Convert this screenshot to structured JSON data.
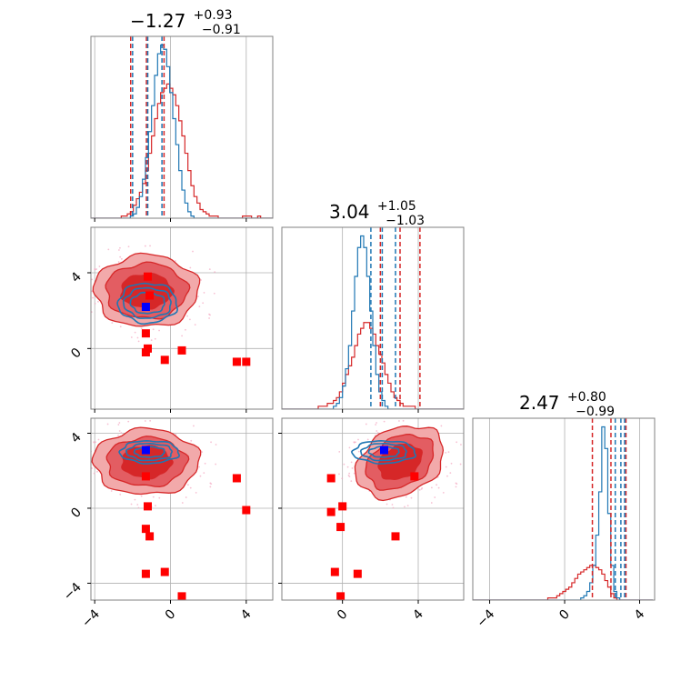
{
  "chart_data": {
    "type": "scatter",
    "subtype": "corner plot",
    "colors": {
      "red": "#d62728",
      "blue": "#1f77b4",
      "marker_red": "#ff0000",
      "marker_blue": "#0000ff",
      "grid": "#b0b0b0",
      "frame": "#808080"
    },
    "titles": [
      {
        "value": "−1.27",
        "sup": "+0.93",
        "sub": "−0.91"
      },
      {
        "value": "3.04",
        "sup": "+1.05",
        "sub": "−1.03"
      },
      {
        "value": "2.47",
        "sup": "+0.80",
        "sub": "−0.99"
      }
    ],
    "axes": {
      "p0": {
        "range": [
          -4.2,
          5.4
        ],
        "ticks": [
          -4,
          0,
          4
        ],
        "tick_labels": [
          "−4",
          "0",
          "4"
        ]
      },
      "p1": {
        "range": [
          -3.2,
          6.4
        ],
        "ticks": [
          0,
          4
        ],
        "tick_labels": [
          "0",
          "4"
        ]
      },
      "p2": {
        "range": [
          -4.9,
          4.8
        ],
        "ticks": [
          -4,
          0,
          4
        ],
        "tick_labels": [
          "−4",
          "0",
          "4"
        ]
      }
    },
    "grid": true,
    "quantiles": {
      "red": {
        "p0": [
          -2.1,
          -1.27,
          -0.34
        ],
        "p1": [
          2.0,
          3.04,
          4.09
        ],
        "p2": [
          1.48,
          2.47,
          3.27
        ]
      },
      "blue": {
        "p0": [
          -2.0,
          -1.2,
          -0.45
        ],
        "p1": [
          1.5,
          2.1,
          2.8
        ],
        "p2": [
          2.7,
          3.0,
          3.2
        ]
      }
    },
    "hist_bins": {
      "p0": {
        "start": -4.2,
        "step": 0.16
      },
      "p1": {
        "start": -3.2,
        "step": 0.16
      },
      "p2": {
        "start": -4.9,
        "step": 0.16
      }
    },
    "histograms": {
      "p0": {
        "red": [
          0,
          0,
          0,
          0,
          0,
          0,
          0,
          0,
          0,
          0,
          1,
          1,
          2,
          3,
          6,
          9,
          12,
          16,
          22,
          30,
          38,
          46,
          53,
          58,
          60,
          62,
          60,
          57,
          52,
          45,
          38,
          30,
          22,
          15,
          10,
          7,
          4,
          3,
          2,
          1,
          1,
          1,
          0,
          0,
          0,
          0,
          0,
          0,
          0,
          0,
          1,
          1,
          1,
          0,
          0,
          1,
          0,
          0,
          0,
          0
        ],
        "blue": [
          0,
          0,
          0,
          0,
          0,
          0,
          0,
          0,
          0,
          0,
          0,
          0,
          0,
          1,
          2,
          5,
          10,
          18,
          28,
          40,
          52,
          66,
          76,
          80,
          78,
          70,
          58,
          46,
          34,
          22,
          13,
          7,
          3,
          1,
          0,
          0,
          0,
          0,
          0,
          0,
          0,
          0,
          0,
          0,
          0,
          0,
          0,
          0,
          0,
          0,
          0,
          0,
          0,
          0,
          0,
          0,
          0,
          0,
          0,
          0
        ]
      },
      "p1": {
        "red": [
          0,
          0,
          0,
          0,
          0,
          0,
          0,
          0,
          0,
          0,
          0,
          0,
          1,
          1,
          1,
          2,
          2,
          3,
          4,
          6,
          9,
          12,
          15,
          18,
          22,
          26,
          28,
          30,
          30,
          28,
          26,
          22,
          19,
          16,
          12,
          9,
          6,
          4,
          3,
          2,
          1,
          1,
          1,
          1,
          0,
          0,
          0,
          0,
          0,
          0,
          0,
          0,
          0,
          0,
          0,
          0,
          0,
          0,
          0,
          0
        ],
        "blue": [
          0,
          0,
          0,
          0,
          0,
          0,
          0,
          0,
          0,
          0,
          0,
          0,
          0,
          0,
          0,
          0,
          0,
          1,
          2,
          4,
          8,
          14,
          22,
          34,
          46,
          56,
          60,
          56,
          46,
          34,
          22,
          12,
          6,
          3,
          1,
          0,
          0,
          0,
          0,
          0,
          0,
          0,
          0,
          0,
          0,
          0,
          0,
          0,
          0,
          0,
          0,
          0,
          0,
          0,
          0,
          0,
          0,
          0,
          0,
          0
        ]
      },
      "p2": {
        "red": [
          0,
          0,
          0,
          0,
          0,
          0,
          0,
          0,
          0,
          0,
          0,
          0,
          0,
          0,
          0,
          0,
          0,
          0,
          0,
          0,
          0,
          0,
          0,
          0,
          0,
          1,
          1,
          1,
          2,
          3,
          4,
          5,
          6,
          8,
          10,
          12,
          13,
          14,
          15,
          16,
          16,
          15,
          14,
          12,
          9,
          6,
          3,
          1,
          0,
          0,
          0,
          0,
          0,
          0,
          0,
          0,
          0,
          0,
          0,
          0
        ],
        "blue": [
          0,
          0,
          0,
          0,
          0,
          0,
          0,
          0,
          0,
          0,
          0,
          0,
          0,
          0,
          0,
          0,
          0,
          0,
          0,
          0,
          0,
          0,
          0,
          0,
          0,
          0,
          0,
          0,
          0,
          0,
          0,
          0,
          0,
          0,
          0,
          0,
          1,
          2,
          4,
          8,
          16,
          30,
          50,
          80,
          70,
          40,
          16,
          4,
          1,
          0,
          0,
          0,
          0,
          0,
          0,
          0,
          0,
          0,
          0,
          0
        ]
      }
    },
    "contours_2d": {
      "p0_p1": {
        "red": {
          "center": [
            -1.27,
            3.04
          ],
          "levels": [
            [
              1.35,
              0.9
            ],
            [
              2.15,
              1.45
            ],
            [
              2.75,
              1.9
            ]
          ]
        },
        "blue": {
          "center": [
            -1.2,
            2.4
          ],
          "levels": [
            [
              0.9,
              0.55
            ],
            [
              1.25,
              0.8
            ],
            [
              1.55,
              1.05
            ]
          ]
        },
        "red_markers": [
          [
            -1.2,
            3.8
          ],
          [
            -1.1,
            2.8
          ],
          [
            -1.3,
            0.8
          ],
          [
            -1.2,
            0.0
          ],
          [
            -1.3,
            -0.2
          ],
          [
            -0.3,
            -0.6
          ],
          [
            0.6,
            -0.1
          ],
          [
            3.5,
            -0.7
          ],
          [
            4.0,
            -0.7
          ]
        ],
        "blue_marker": [
          -1.3,
          2.2
        ]
      },
      "p0_p2": {
        "red": {
          "center": [
            -1.27,
            2.47
          ],
          "levels": [
            [
              1.3,
              0.85
            ],
            [
              2.1,
              1.3
            ],
            [
              2.8,
              1.75
            ]
          ]
        },
        "blue": {
          "center": [
            -1.1,
            3.0
          ],
          "levels": [
            [
              0.8,
              0.28
            ],
            [
              1.2,
              0.45
            ],
            [
              1.55,
              0.6
            ]
          ]
        },
        "red_markers": [
          [
            -1.3,
            1.7
          ],
          [
            -1.2,
            0.1
          ],
          [
            -1.3,
            -1.1
          ],
          [
            -1.1,
            -1.5
          ],
          [
            -1.3,
            -3.5
          ],
          [
            -0.3,
            -3.4
          ],
          [
            0.6,
            -4.7
          ],
          [
            3.5,
            1.6
          ],
          [
            4.0,
            -0.1
          ]
        ],
        "blue_marker": [
          -1.3,
          3.1
        ]
      },
      "p1_p2": {
        "red": {
          "center": [
            3.04,
            2.47
          ],
          "levels": [
            [
              1.2,
              0.85
            ],
            [
              1.9,
              1.3
            ],
            [
              2.45,
              1.75
            ]
          ],
          "rotation": -28
        },
        "blue": {
          "center": [
            2.2,
            3.0
          ],
          "levels": [
            [
              0.8,
              0.28
            ],
            [
              1.2,
              0.45
            ],
            [
              1.65,
              0.6
            ]
          ]
        },
        "red_markers": [
          [
            -0.6,
            1.6
          ],
          [
            -0.6,
            -0.2
          ],
          [
            0.0,
            0.1
          ],
          [
            -0.1,
            -1.0
          ],
          [
            -0.4,
            -3.4
          ],
          [
            0.8,
            -3.5
          ],
          [
            -0.1,
            -4.7
          ],
          [
            2.8,
            -1.5
          ],
          [
            3.8,
            1.7
          ]
        ],
        "blue_marker": [
          2.2,
          3.1
        ]
      }
    }
  }
}
